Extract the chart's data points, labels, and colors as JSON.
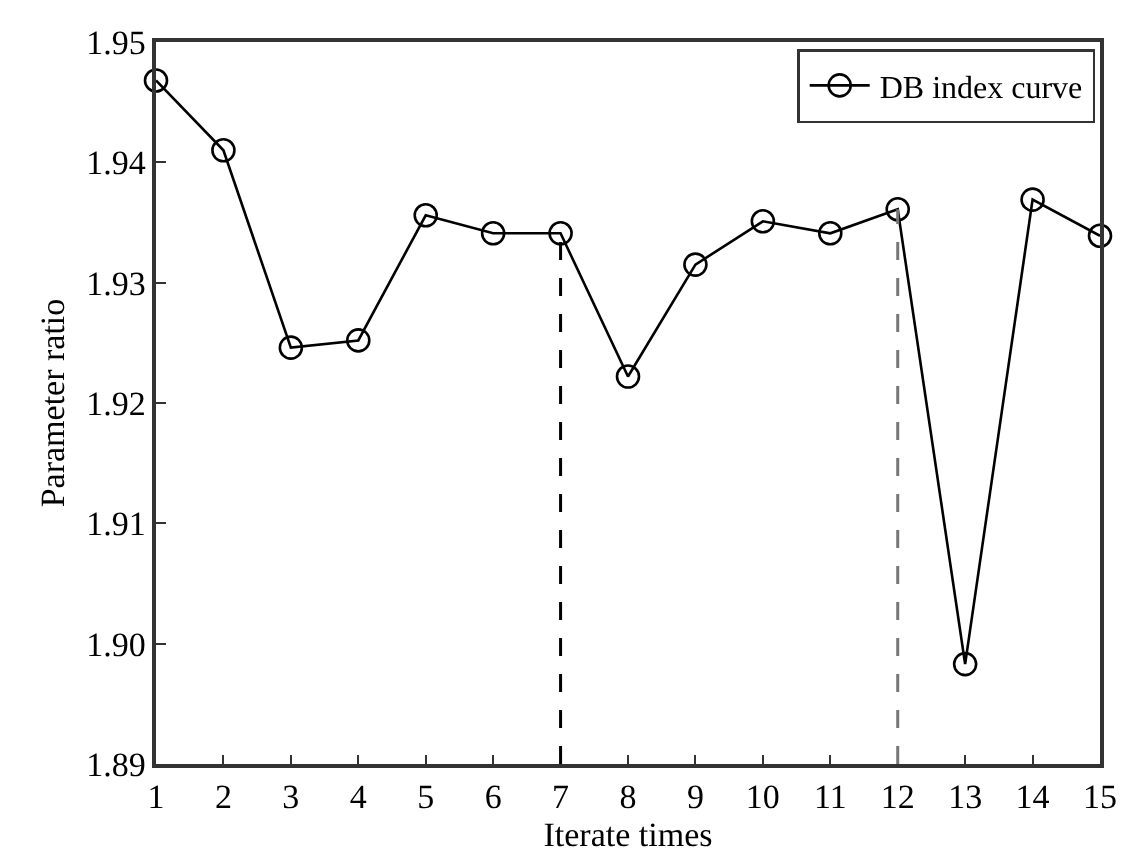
{
  "chart_data": {
    "type": "line",
    "xlabel": "Iterate times",
    "ylabel": "Parameter ratio",
    "x": [
      1,
      2,
      3,
      4,
      5,
      6,
      7,
      8,
      9,
      10,
      11,
      12,
      13,
      14,
      15
    ],
    "series": [
      {
        "name": "DB index curve",
        "color": "#000000",
        "values": [
          1.9468,
          1.941,
          1.9246,
          1.9252,
          1.9356,
          1.9341,
          1.9341,
          1.9222,
          1.9315,
          1.9351,
          1.9341,
          1.9361,
          1.8983,
          1.9369,
          1.9339
        ]
      }
    ],
    "xlim": [
      1,
      15
    ],
    "xticks": [
      1,
      2,
      3,
      4,
      5,
      6,
      7,
      8,
      9,
      10,
      11,
      12,
      13,
      14,
      15
    ],
    "ylim": [
      1.89,
      1.95
    ],
    "yticks": [
      1.89,
      {
        "value": 1.9,
        "label": "1.90"
      },
      1.91,
      1.92,
      1.93,
      1.94,
      1.95
    ],
    "ref_lines": [
      {
        "axis": "x",
        "value": 7,
        "color": "#000000",
        "line_style": "dashed"
      },
      {
        "axis": "x",
        "value": 12,
        "color": "#777777",
        "line_style": "dashed"
      }
    ],
    "marker": "circle",
    "line_style": "solid",
    "legend": "top right"
  }
}
